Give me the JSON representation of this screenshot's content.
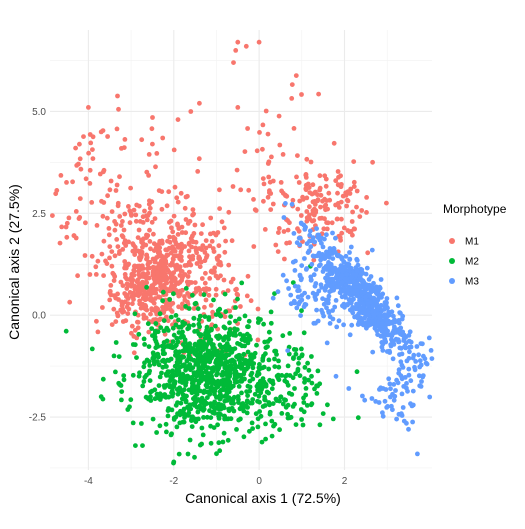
{
  "chart_data": {
    "type": "scatter",
    "xlabel": "Canonical axis 1 (72.5%)",
    "ylabel": "Canonical axis 2 (27.5%)",
    "xlim": [
      -4.9,
      4.05
    ],
    "ylim": [
      -3.8,
      7.0
    ],
    "x_ticks": [
      -4,
      -2,
      0,
      2
    ],
    "x_tick_labels": [
      "-4",
      "-2",
      "0",
      "2"
    ],
    "y_ticks": [
      -2.5,
      0.0,
      2.5,
      5.0
    ],
    "y_tick_labels": [
      "-2.5",
      "0.0",
      "2.5",
      "5.0"
    ],
    "grid": true,
    "legend": {
      "title": "Morphotype",
      "placement": "right"
    },
    "series": [
      {
        "name": "M1",
        "color": "#F8766D",
        "clusters": [
          {
            "n": 520,
            "cx": -2.4,
            "cy": 0.9,
            "sx": 0.5,
            "sy": 0.7,
            "rot": -0.5
          },
          {
            "n": 140,
            "cx": -1.2,
            "cy": 0.8,
            "sx": 0.55,
            "sy": 0.9,
            "rot": 0
          },
          {
            "n": 150,
            "cx": -3.2,
            "cy": 2.8,
            "sx": 0.8,
            "sy": 1.0,
            "rot": 0
          },
          {
            "n": 160,
            "cx": 1.4,
            "cy": 2.6,
            "sx": 0.6,
            "sy": 0.6,
            "rot": -0.7
          },
          {
            "n": 40,
            "cx": 0.4,
            "cy": 3.8,
            "sx": 0.5,
            "sy": 0.9,
            "rot": 0
          }
        ],
        "points": [
          [
            -4.0,
            5.1
          ],
          [
            -4.3,
            4.1
          ],
          [
            -3.7,
            4.5
          ],
          [
            -2.5,
            4.2
          ],
          [
            -1.6,
            5.0
          ],
          [
            -1.4,
            5.2
          ],
          [
            -0.6,
            6.2
          ],
          [
            -0.5,
            6.7
          ],
          [
            -0.3,
            6.6
          ],
          [
            0.0,
            6.7
          ],
          [
            -0.5,
            5.1
          ],
          [
            -1.9,
            4.8
          ],
          [
            -0.55,
            6.5
          ]
        ]
      },
      {
        "name": "M2",
        "color": "#00BA38",
        "clusters": [
          {
            "n": 900,
            "cx": -1.3,
            "cy": -1.4,
            "sx": 0.8,
            "sy": 0.75,
            "rot": -0.5
          },
          {
            "n": 160,
            "cx": 0.2,
            "cy": -1.7,
            "sx": 0.8,
            "sy": 0.7,
            "rot": 0
          }
        ],
        "points": [
          [
            -3.7,
            -2.0
          ],
          [
            -3.4,
            -1.0
          ],
          [
            -2.9,
            -3.2
          ],
          [
            -2.0,
            -3.6
          ],
          [
            -1.0,
            -3.4
          ],
          [
            1.6,
            -2.2
          ],
          [
            1.0,
            -1.0
          ],
          [
            0.8,
            0.8
          ],
          [
            1.2,
            1.2
          ],
          [
            -2.5,
            -0.5
          ]
        ]
      },
      {
        "name": "M3",
        "color": "#619CFF",
        "clusters": [
          {
            "n": 650,
            "cx": 2.45,
            "cy": 0.4,
            "sx": 0.9,
            "sy": 0.22,
            "rot": -0.9
          },
          {
            "n": 120,
            "cx": 1.5,
            "cy": 0.6,
            "sx": 0.5,
            "sy": 0.5,
            "rot": 0
          },
          {
            "n": 60,
            "cx": 3.2,
            "cy": -1.9,
            "sx": 0.4,
            "sy": 0.4,
            "rot": -0.9
          }
        ],
        "points": [
          [
            1.8,
            -1.5
          ],
          [
            2.1,
            -1.8
          ],
          [
            0.8,
            1.3
          ],
          [
            0.9,
            0.6
          ],
          [
            3.5,
            -2.8
          ],
          [
            3.4,
            -2.6
          ]
        ]
      }
    ]
  }
}
